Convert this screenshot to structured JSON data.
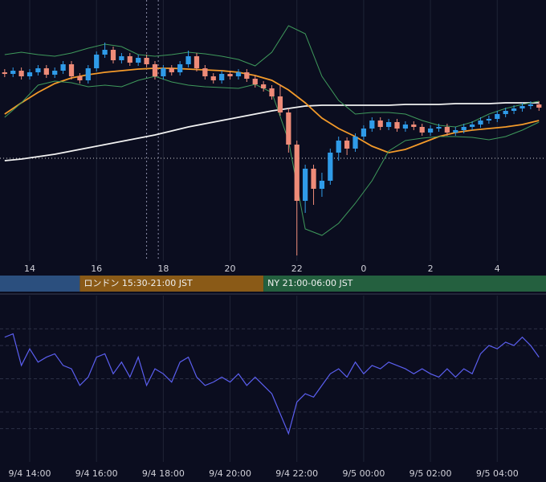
{
  "chart_data": [
    {
      "type": "candlestick",
      "x": [
        13.25,
        13.5,
        13.75,
        14,
        14.25,
        14.5,
        14.75,
        15,
        15.25,
        15.5,
        15.75,
        16,
        16.25,
        16.5,
        16.75,
        17,
        17.25,
        17.5,
        17.75,
        18,
        18.25,
        18.5,
        18.75,
        19,
        19.25,
        19.5,
        19.75,
        20,
        20.25,
        20.5,
        20.75,
        21,
        21.25,
        21.5,
        21.75,
        22,
        22.25,
        22.5,
        22.75,
        23,
        23.25,
        23.5,
        23.75,
        24,
        24.25,
        24.5,
        24.75,
        25,
        25.25,
        25.5,
        25.75,
        26,
        26.25,
        26.5,
        26.75,
        27,
        27.25,
        27.5,
        27.75,
        28,
        28.25,
        28.5,
        28.75,
        29,
        29.25
      ],
      "open": [
        235,
        233,
        237,
        230,
        235,
        240,
        232,
        237,
        245,
        230,
        225,
        240,
        257,
        263,
        250,
        255,
        247,
        253,
        245,
        230,
        240,
        235,
        245,
        255,
        240,
        230,
        225,
        233,
        230,
        235,
        227,
        220,
        215,
        205,
        185,
        145,
        75,
        115,
        90,
        100,
        135,
        150,
        140,
        155,
        165,
        175,
        167,
        173,
        165,
        170,
        167,
        160,
        165,
        167,
        160,
        163,
        167,
        170,
        175,
        177,
        183,
        187,
        190,
        193,
        195
      ],
      "high": [
        239,
        241,
        241,
        239,
        244,
        244,
        241,
        249,
        249,
        234,
        244,
        261,
        272,
        267,
        259,
        259,
        257,
        257,
        249,
        244,
        244,
        249,
        262,
        259,
        244,
        234,
        237,
        237,
        239,
        239,
        231,
        224,
        219,
        220,
        190,
        150,
        120,
        120,
        110,
        140,
        155,
        154,
        159,
        169,
        179,
        179,
        177,
        177,
        174,
        174,
        171,
        169,
        171,
        171,
        167,
        171,
        174,
        179,
        181,
        187,
        191,
        194,
        197,
        199,
        199
      ],
      "low": [
        229,
        229,
        226,
        226,
        231,
        228,
        228,
        233,
        226,
        221,
        221,
        236,
        253,
        246,
        246,
        243,
        243,
        241,
        226,
        226,
        231,
        231,
        241,
        236,
        226,
        221,
        221,
        226,
        226,
        223,
        216,
        211,
        201,
        181,
        135,
        7,
        60,
        70,
        80,
        95,
        125,
        132,
        136,
        151,
        161,
        163,
        163,
        161,
        161,
        163,
        156,
        156,
        161,
        156,
        156,
        159,
        163,
        166,
        171,
        173,
        179,
        183,
        186,
        189,
        187
      ],
      "close": [
        233,
        237,
        230,
        235,
        240,
        232,
        237,
        245,
        230,
        225,
        240,
        257,
        263,
        250,
        255,
        247,
        253,
        245,
        230,
        240,
        235,
        245,
        255,
        240,
        230,
        225,
        233,
        230,
        235,
        227,
        220,
        215,
        205,
        185,
        145,
        75,
        115,
        90,
        100,
        135,
        150,
        140,
        155,
        165,
        175,
        167,
        173,
        165,
        170,
        167,
        160,
        165,
        167,
        160,
        163,
        167,
        170,
        175,
        177,
        183,
        187,
        190,
        193,
        195,
        191
      ],
      "up_color": "#2f9be8",
      "down_color": "#ee8b78",
      "line_x": [
        13.25,
        13.75,
        14.25,
        14.75,
        15.25,
        15.75,
        16.25,
        16.75,
        17.25,
        17.75,
        18.25,
        18.75,
        19.25,
        19.75,
        20.25,
        20.75,
        21.25,
        21.75,
        22.25,
        22.75,
        23.25,
        23.75,
        24.25,
        24.75,
        25.25,
        25.75,
        26.25,
        26.75,
        27.25,
        27.75,
        28.25,
        28.75,
        29.25
      ],
      "lines": [
        {
          "color": "#f2f2f2",
          "values": [
            125,
            127,
            130,
            133,
            137,
            141,
            145,
            149,
            153,
            157,
            162,
            167,
            171,
            175,
            179,
            183,
            187,
            190,
            193,
            194,
            194,
            194,
            194,
            194,
            195,
            195,
            195,
            196,
            196,
            196,
            197,
            197,
            197
          ]
        },
        {
          "color": "#f39a2a",
          "values": [
            183,
            197,
            210,
            221,
            228,
            232,
            235,
            237,
            239,
            240,
            240,
            239,
            238,
            237,
            235,
            231,
            225,
            213,
            197,
            178,
            165,
            155,
            143,
            135,
            139,
            147,
            155,
            160,
            163,
            165,
            167,
            170,
            175
          ]
        },
        {
          "color": "#3f9a5c",
          "values": [
            257,
            260,
            257,
            255,
            259,
            265,
            270,
            267,
            257,
            255,
            257,
            260,
            258,
            255,
            251,
            243,
            260,
            293,
            283,
            230,
            200,
            183,
            185,
            185,
            183,
            175,
            169,
            167,
            173,
            183,
            190,
            195,
            199
          ]
        },
        {
          "color": "#3f9a5c",
          "values": [
            179,
            197,
            219,
            224,
            222,
            217,
            219,
            217,
            225,
            230,
            223,
            219,
            217,
            216,
            215,
            220,
            210,
            150,
            40,
            32,
            47,
            72,
            100,
            137,
            150,
            153,
            155,
            155,
            154,
            151,
            155,
            163,
            173
          ]
        }
      ],
      "hline": 128,
      "vlines": [
        17.5,
        17.85
      ],
      "xlim": [
        13.11,
        29.46
      ],
      "ylim": [
        0,
        325
      ],
      "xticks": [
        {
          "value": 14,
          "label": "14"
        },
        16,
        18,
        20,
        22,
        {
          "value": 24,
          "label": "0"
        },
        {
          "value": 26,
          "label": "2"
        },
        {
          "value": 28,
          "label": "4"
        }
      ],
      "grid": true
    },
    {
      "type": "line",
      "x": [
        13.25,
        13.5,
        13.75,
        14,
        14.25,
        14.5,
        14.75,
        15,
        15.25,
        15.5,
        15.75,
        16,
        16.25,
        16.5,
        16.75,
        17,
        17.25,
        17.5,
        17.75,
        18,
        18.25,
        18.5,
        18.75,
        19,
        19.25,
        19.5,
        19.75,
        20,
        20.25,
        20.5,
        20.75,
        21,
        21.25,
        21.5,
        21.75,
        22,
        22.25,
        22.5,
        22.75,
        23,
        23.25,
        23.5,
        23.75,
        24,
        24.25,
        24.5,
        24.75,
        25,
        25.25,
        25.5,
        25.75,
        26,
        26.25,
        26.5,
        26.75,
        27,
        27.25,
        27.5,
        27.75,
        28,
        28.25,
        28.5,
        28.75,
        29,
        29.25
      ],
      "values": [
        75,
        77,
        58,
        68,
        60,
        63,
        65,
        58,
        56,
        46,
        51,
        63,
        65,
        53,
        60,
        51,
        63,
        46,
        56,
        53,
        48,
        60,
        63,
        51,
        46,
        48,
        51,
        48,
        53,
        46,
        51,
        46,
        41,
        29,
        17,
        36,
        41,
        39,
        46,
        53,
        56,
        51,
        60,
        53,
        58,
        56,
        60,
        58,
        56,
        53,
        56,
        53,
        51,
        56,
        51,
        56,
        53,
        65,
        70,
        68,
        72,
        70,
        75,
        70,
        63
      ],
      "color": "#5b5ff0",
      "levels": [
        20,
        30,
        50,
        70,
        80
      ],
      "xlim": [
        13.11,
        29.46
      ],
      "ylim": [
        0,
        100
      ],
      "xticks": [
        {
          "value": 14,
          "label": "9/4 14:00"
        },
        {
          "value": 16,
          "label": "9/4 16:00"
        },
        {
          "value": 18,
          "label": "9/4 18:00"
        },
        {
          "value": 20,
          "label": "9/4 20:00"
        },
        {
          "value": 22,
          "label": "9/4 22:00"
        },
        {
          "value": 24,
          "label": "9/5 00:00"
        },
        {
          "value": 26,
          "label": "9/5 02:00"
        },
        {
          "value": 28,
          "label": "9/5 04:00"
        }
      ],
      "grid": true
    }
  ],
  "sessions": [
    {
      "label": null,
      "start": 13.11,
      "end": 15.5,
      "color": "#2b4f7e"
    },
    {
      "label": "ロンドン 15:30-21:00 JST",
      "start": 15.5,
      "end": 21,
      "color": "#8a5a17"
    },
    {
      "label": "NY 21:00-06:00 JST",
      "start": 21,
      "end": 29.46,
      "color": "#24603f"
    }
  ]
}
